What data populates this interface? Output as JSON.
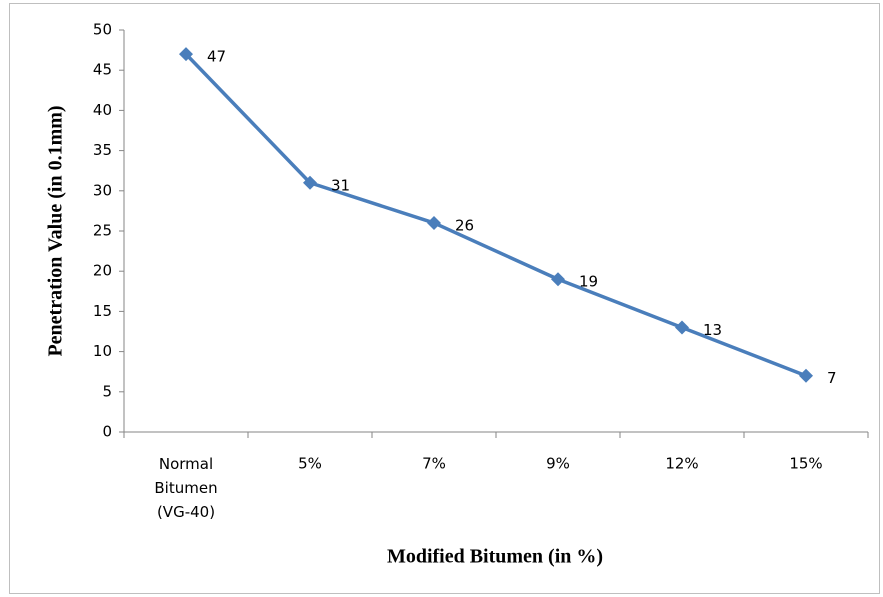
{
  "chart_data": {
    "type": "line",
    "x_label": "Modified Bitumen (in %)",
    "y_label": "Penetration Value (in 0.1mm)",
    "categories": [
      "Normal Bitumen (VG-40)",
      "5%",
      "7%",
      "9%",
      "12%",
      "15%"
    ],
    "series": [
      {
        "name": "Penetration Value",
        "color": "#4a7ebb",
        "values": [
          47,
          31,
          26,
          19,
          13,
          7
        ]
      }
    ],
    "ylim": [
      0,
      50
    ],
    "yticks": [
      0,
      5,
      10,
      15,
      20,
      25,
      30,
      35,
      40,
      45,
      50
    ],
    "grid": false,
    "legend": false,
    "data_labels": true
  }
}
